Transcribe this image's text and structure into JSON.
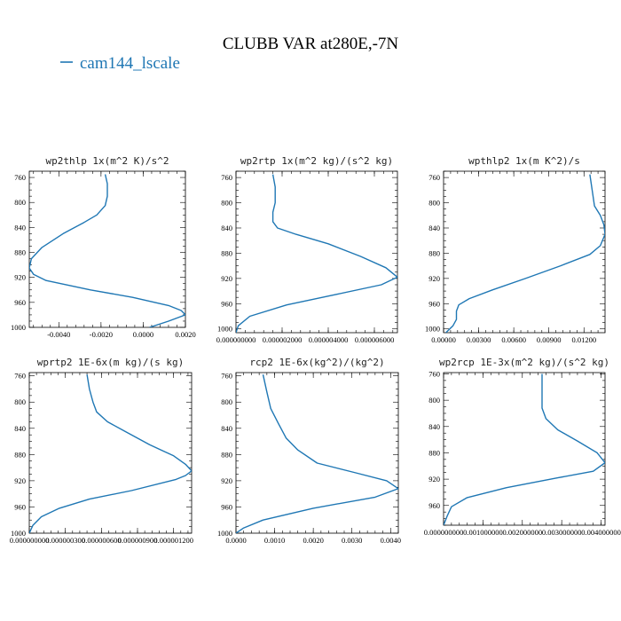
{
  "figure": {
    "title": "CLUBB VAR at280E,-7N",
    "legend": [
      {
        "label": "cam144_lscale",
        "color": "#1f77b4"
      }
    ]
  },
  "chart_data": [
    {
      "type": "line",
      "title": "wp2thlp   1x(m^2 K)/s^2",
      "xlim": [
        -0.0054,
        0.002
      ],
      "ylim": [
        1000,
        750
      ],
      "xticks": [
        -0.004,
        -0.002,
        0.0,
        0.002
      ],
      "xticklabels": [
        "-0.0040",
        "-0.0020",
        "0.0000",
        "0.0020"
      ],
      "yticks": [
        760,
        800,
        840,
        880,
        920,
        960,
        1000
      ],
      "series": [
        {
          "color": "#1f77b4",
          "x": [
            -0.0018,
            -0.0017,
            -0.0017,
            -0.0018,
            -0.0022,
            -0.0028,
            -0.0038,
            -0.0048,
            -0.0053,
            -0.0054,
            -0.0052,
            -0.0046,
            -0.0025,
            -0.0005,
            0.0012,
            0.0018,
            0.002,
            0.0012,
            0.0003
          ],
          "y": [
            755,
            770,
            790,
            805,
            820,
            832,
            850,
            872,
            890,
            905,
            915,
            925,
            940,
            952,
            965,
            973,
            980,
            990,
            1000
          ]
        }
      ]
    },
    {
      "type": "line",
      "title": "wp2rtp   1x(m^2 kg)/(s^2 kg)",
      "xlim": [
        0.0,
        7e-06
      ],
      "ylim": [
        1006,
        750
      ],
      "xticks": [
        0.0,
        2e-06,
        4e-06,
        6e-06
      ],
      "xticklabels": [
        "0.000000000",
        "0.000002000",
        "0.000004000",
        "0.000006000"
      ],
      "yticks": [
        760,
        800,
        840,
        880,
        920,
        960,
        1000
      ],
      "series": [
        {
          "color": "#1f77b4",
          "x": [
            1.6e-06,
            1.7e-06,
            1.7e-06,
            1.6e-06,
            1.6e-06,
            1.8e-06,
            2.6e-06,
            4e-06,
            5.4e-06,
            6.5e-06,
            7e-06,
            6.3e-06,
            4.4e-06,
            2.2e-06,
            6e-07,
            1e-07,
            0.0
          ],
          "y": [
            755,
            775,
            800,
            815,
            830,
            840,
            850,
            865,
            885,
            903,
            918,
            930,
            945,
            962,
            980,
            995,
            1006
          ]
        }
      ]
    },
    {
      "type": "line",
      "title": "wpthlp2   1x(m K^2)/s",
      "xlim": [
        0.0,
        0.0138
      ],
      "ylim": [
        1006,
        750
      ],
      "xticks": [
        0.0,
        0.003,
        0.006,
        0.009,
        0.012
      ],
      "xticklabels": [
        "0.00000",
        "0.00300",
        "0.00600",
        "0.00900",
        "0.01200"
      ],
      "yticks": [
        760,
        800,
        840,
        880,
        920,
        960,
        1000
      ],
      "series": [
        {
          "color": "#1f77b4",
          "x": [
            0.0125,
            0.0127,
            0.0129,
            0.0134,
            0.0137,
            0.0138,
            0.0134,
            0.0125,
            0.01,
            0.007,
            0.0042,
            0.0022,
            0.0013,
            0.0011,
            0.0011,
            0.0008,
            0.0002
          ],
          "y": [
            755,
            780,
            805,
            820,
            835,
            850,
            868,
            882,
            900,
            920,
            938,
            952,
            962,
            972,
            985,
            995,
            1006
          ]
        }
      ]
    },
    {
      "type": "line",
      "title": "wprtp2   1E-6x(m kg)/(s kg)",
      "xlim": [
        0.0,
        1.35e-06
      ],
      "ylim": [
        1000,
        755
      ],
      "xticks": [
        0.0,
        3e-07,
        6e-07,
        9e-07,
        1.2e-06
      ],
      "xticklabels": [
        "0.000000000",
        "0.000000300",
        "0.000000600",
        "0.000000900",
        "0.000001200"
      ],
      "yticks": [
        760,
        800,
        840,
        880,
        920,
        960,
        1000
      ],
      "series": [
        {
          "color": "#1f77b4",
          "x": [
            4.8e-07,
            5e-07,
            5.3e-07,
            5.6e-07,
            6.5e-07,
            8e-07,
            1e-06,
            1.2e-06,
            1.3e-06,
            1.35e-06,
            1.3e-06,
            1.22e-06,
            8.5e-07,
            5e-07,
            2.5e-07,
            1e-07,
            3e-08,
            0.0
          ],
          "y": [
            758,
            780,
            800,
            815,
            830,
            845,
            865,
            882,
            895,
            905,
            912,
            918,
            935,
            948,
            962,
            975,
            988,
            1000
          ]
        }
      ]
    },
    {
      "type": "line",
      "title": "rcp2   1E-6x(kg^2)/(kg^2)",
      "xlim": [
        0.0,
        0.0042
      ],
      "ylim": [
        1000,
        755
      ],
      "xticks": [
        0.0,
        0.001,
        0.002,
        0.003,
        0.004
      ],
      "xticklabels": [
        "0.0000",
        "0.0010",
        "0.0020",
        "0.0030",
        "0.0040"
      ],
      "yticks": [
        760,
        800,
        840,
        880,
        920,
        960,
        1000
      ],
      "series": [
        {
          "color": "#1f77b4",
          "x": [
            0.0007,
            0.0008,
            0.0009,
            0.0011,
            0.0013,
            0.0016,
            0.0021,
            0.0031,
            0.0039,
            0.0042,
            0.0036,
            0.002,
            0.0007,
            0.0002,
            0.0
          ],
          "y": [
            758,
            785,
            810,
            833,
            855,
            873,
            893,
            908,
            920,
            932,
            945,
            962,
            980,
            992,
            1000
          ]
        }
      ]
    },
    {
      "type": "line",
      "title": "wp2rcp   1E-3x(m^2 kg)/(s^2 kg)",
      "xlim": [
        0.0,
        0.0041
      ],
      "ylim": [
        990,
        758
      ],
      "xticks": [
        0.0,
        0.001,
        0.002,
        0.003,
        0.004
      ],
      "xticklabels": [
        "0.000000000",
        "0.001000000",
        "0.002000000",
        "0.003000000",
        "0.004000000"
      ],
      "yticks": [
        760,
        800,
        840,
        880,
        920,
        960
      ],
      "series": [
        {
          "color": "#1f77b4",
          "x": [
            0.0025,
            0.0025,
            0.0025,
            0.0026,
            0.0029,
            0.0034,
            0.0039,
            0.0041,
            0.0038,
            0.0029,
            0.0016,
            0.0006,
            0.0002,
            0.0001,
            0.0
          ],
          "y": [
            760,
            790,
            812,
            828,
            845,
            862,
            880,
            895,
            908,
            918,
            933,
            948,
            962,
            975,
            990
          ]
        }
      ]
    }
  ]
}
